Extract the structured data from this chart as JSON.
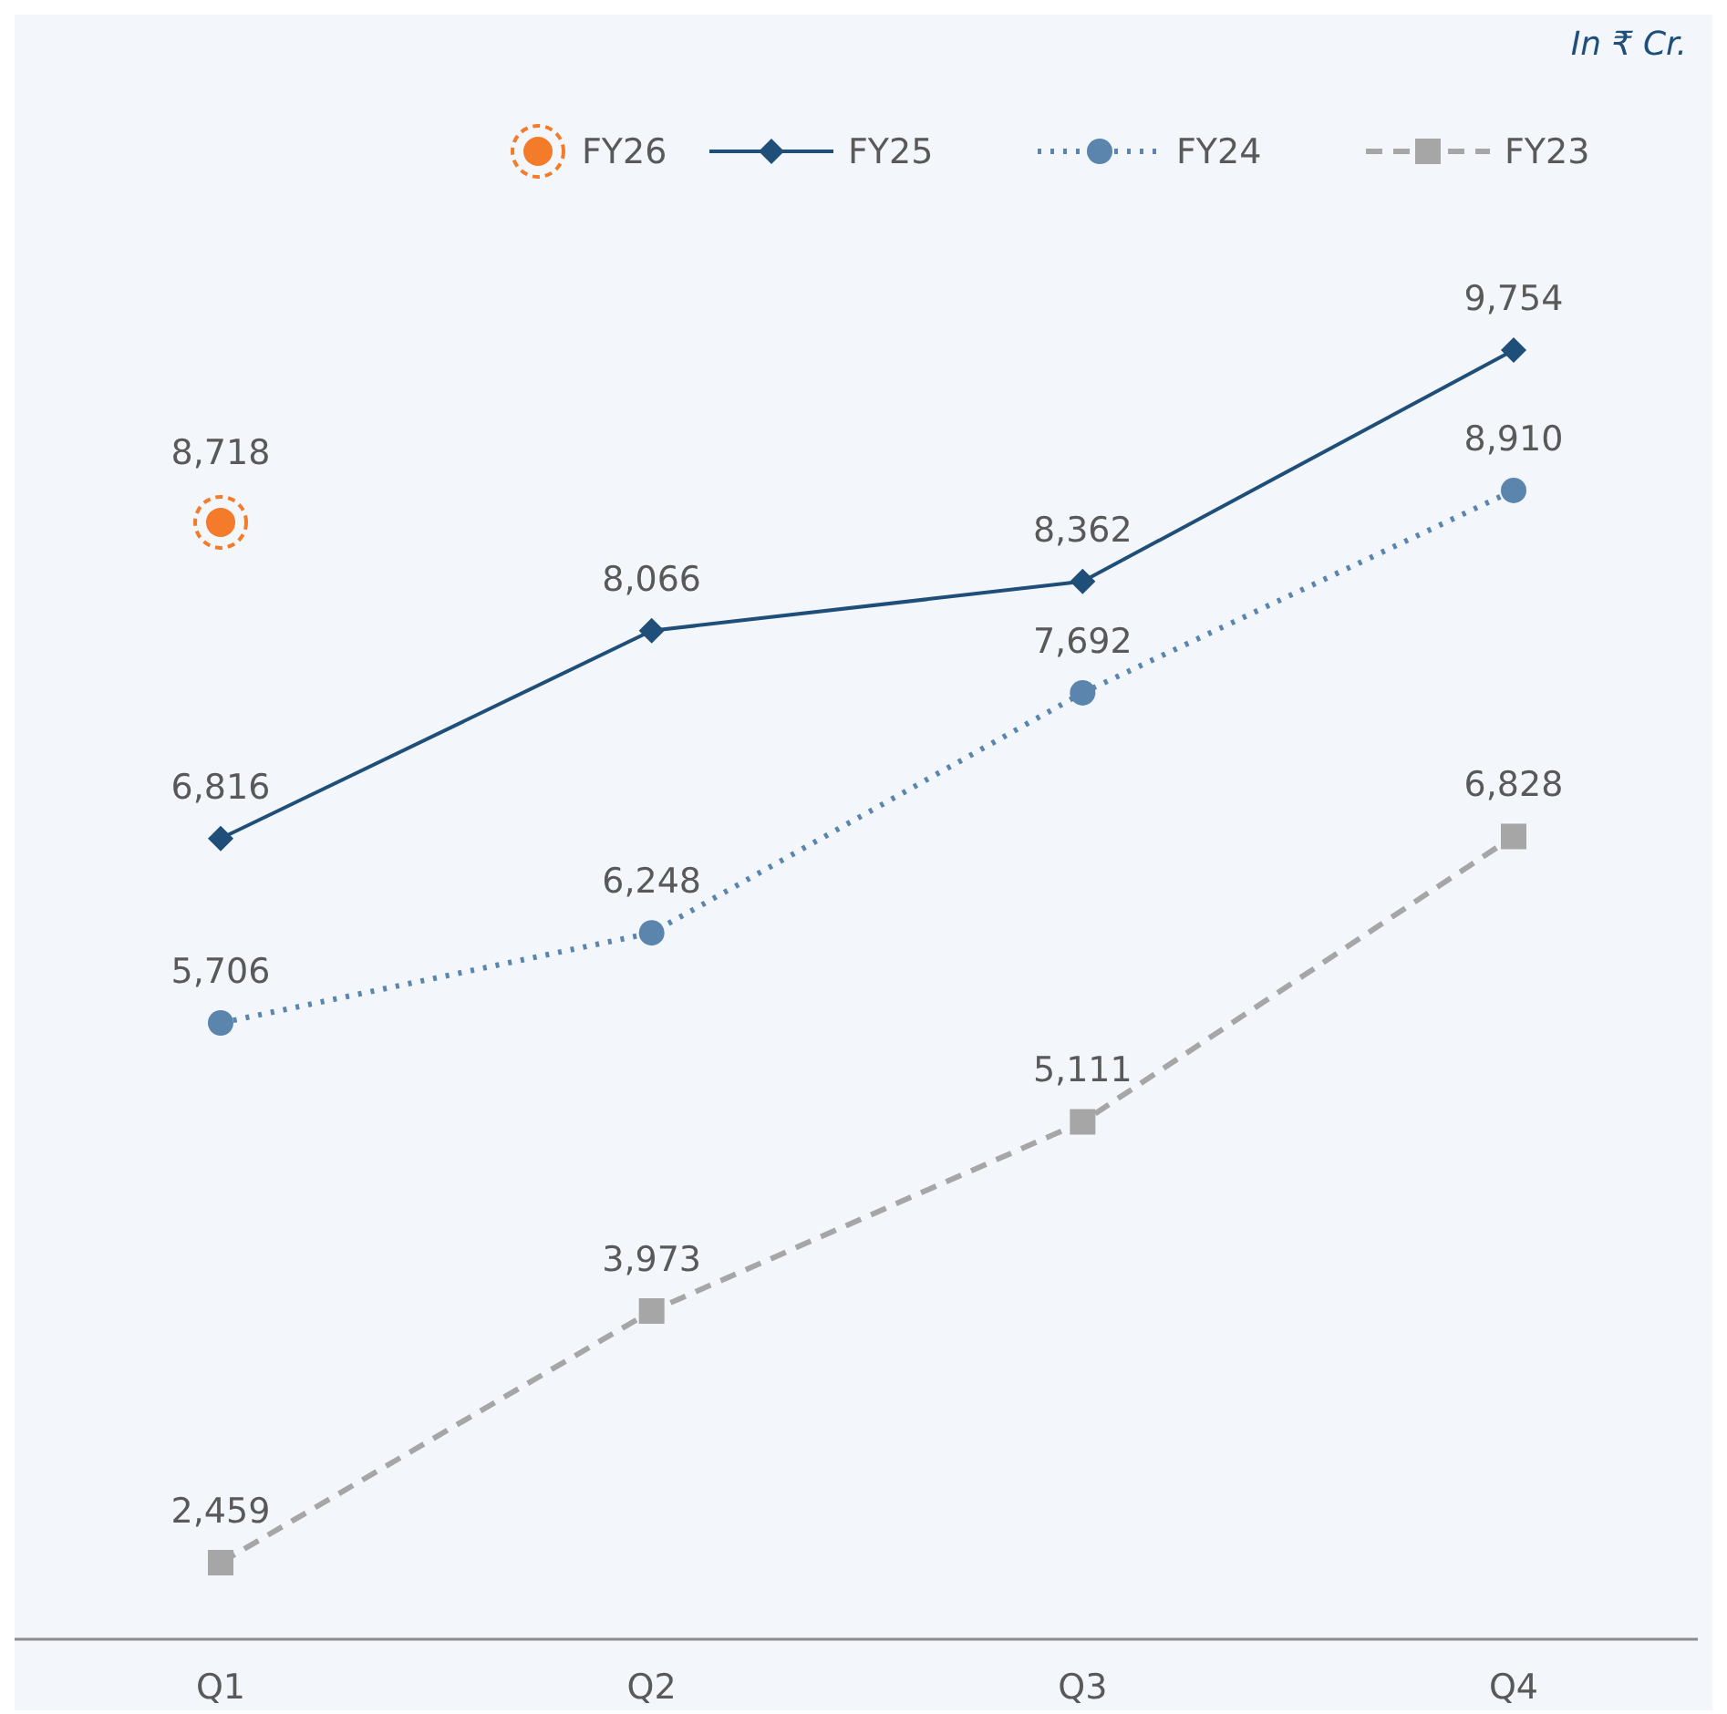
{
  "chart_data": {
    "type": "line",
    "categories": [
      "Q1",
      "Q2",
      "Q3",
      "Q4"
    ],
    "legend": "top right",
    "annotations": [
      "In ₹ Cr."
    ],
    "series": [
      {
        "name": "FY26",
        "type": "scatter",
        "color": "#f47b2a",
        "marker": "circle",
        "values": [
          8718,
          null,
          null,
          null
        ],
        "value_labels": [
          "8,718",
          null,
          null,
          null
        ]
      },
      {
        "name": "FY25",
        "color": "#1f4e79",
        "marker": "diamond",
        "line_style": "solid",
        "values": [
          6816,
          8066,
          8362,
          9754
        ],
        "value_labels": [
          "6,816",
          "8,066",
          "8,362",
          "9,754"
        ]
      },
      {
        "name": "FY24",
        "color": "#5b85ad",
        "marker": "circle",
        "line_style": "dotted",
        "values": [
          5706,
          6248,
          7692,
          8910
        ],
        "value_labels": [
          "5,706",
          "6,248",
          "7,692",
          "8,910"
        ]
      },
      {
        "name": "FY23",
        "color": "#a6a6a6",
        "marker": "square",
        "line_style": "dashed",
        "values": [
          2459,
          3973,
          5111,
          6828
        ],
        "value_labels": [
          "2,459",
          "3,973",
          "5,111",
          "6,828"
        ]
      }
    ]
  }
}
